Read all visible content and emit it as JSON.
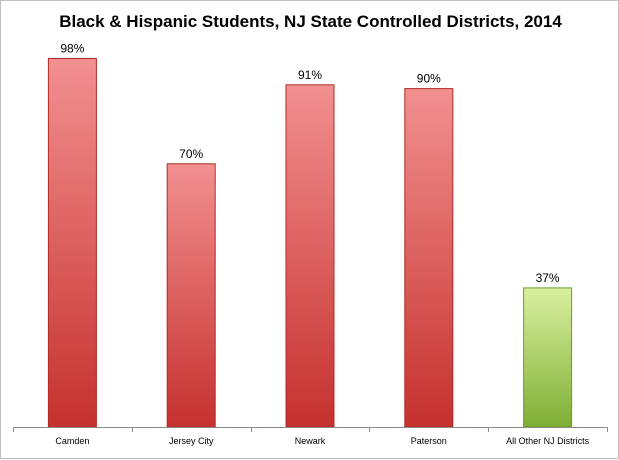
{
  "chart_data": {
    "type": "bar",
    "title": "Black & Hispanic Students, NJ State Controlled Districts, 2014",
    "categories": [
      "Camden",
      "Jersey City",
      "Newark",
      "Paterson",
      "All Other NJ Districts"
    ],
    "values": [
      98,
      70,
      91,
      90,
      37
    ],
    "value_labels": [
      "98%",
      "70%",
      "91%",
      "90%",
      "37%"
    ],
    "ylim": [
      0,
      100
    ],
    "xlabel": "",
    "ylabel": "",
    "grid": false,
    "legend": "none",
    "colors": {
      "state_controlled_top": "#f29090",
      "state_controlled_bottom": "#c5312e",
      "state_controlled_stroke": "#b22a26",
      "other_top": "#d9f0a0",
      "other_bottom": "#7fae35",
      "other_stroke": "#6e9a2c",
      "axis": "#8c8c8c"
    }
  }
}
